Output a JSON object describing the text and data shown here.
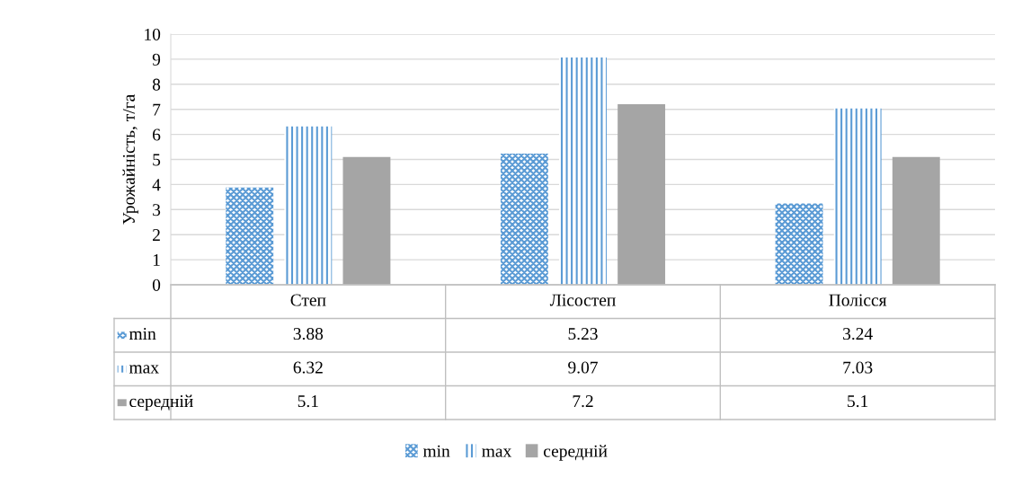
{
  "chart_data": {
    "type": "bar",
    "ylabel": "Урожайність, т/га",
    "categories": [
      "Степ",
      "Лісостеп",
      "Полісся"
    ],
    "series": [
      {
        "name": "min",
        "color": "#5b9bd5",
        "values": [
          3.88,
          5.23,
          3.24
        ]
      },
      {
        "name": "max",
        "color": "#5b9bd5",
        "values": [
          6.32,
          9.07,
          7.03
        ]
      },
      {
        "name": "середній",
        "color": "#a5a5a5",
        "values": [
          5.1,
          7.2,
          5.1
        ]
      }
    ],
    "ylim": [
      0,
      10
    ],
    "yticks": [
      0,
      1,
      2,
      3,
      4,
      5,
      6,
      7,
      8,
      9,
      10
    ],
    "grid": "y",
    "legend": "bottom",
    "data_labels": true
  }
}
